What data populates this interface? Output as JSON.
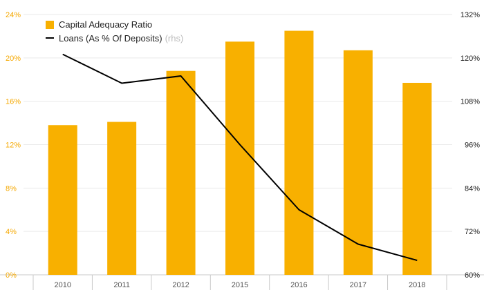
{
  "chart_data": {
    "type": "bar",
    "categories": [
      "2010",
      "2011",
      "2012",
      "2015",
      "2016",
      "2017",
      "2018"
    ],
    "series": [
      {
        "name": "Capital Adequacy Ratio",
        "type": "bar",
        "axis": "left",
        "color": "#f8b000",
        "values": [
          13.8,
          14.1,
          18.8,
          21.5,
          22.5,
          20.7,
          17.7
        ]
      },
      {
        "name": "Loans (As % Of Deposits)",
        "legend_suffix": "(rhs)",
        "type": "line",
        "axis": "right",
        "color": "#000000",
        "values": [
          121,
          113,
          115,
          96,
          78,
          68.5,
          64
        ]
      }
    ],
    "y_left": {
      "ylim": [
        0,
        24
      ],
      "ticks": [
        0,
        4,
        8,
        12,
        16,
        20,
        24
      ],
      "tick_labels": [
        "0%",
        "4%",
        "8%",
        "12%",
        "16%",
        "20%",
        "24%"
      ],
      "color": "#f5a800"
    },
    "y_right": {
      "ylim": [
        60,
        132
      ],
      "ticks": [
        60,
        72,
        84,
        96,
        108,
        120,
        132
      ],
      "tick_labels": [
        "60%",
        "72%",
        "84%",
        "96%",
        "108%",
        "120%",
        "132%"
      ],
      "color": "#222222"
    },
    "grid": true,
    "legend_position": "top-left"
  }
}
